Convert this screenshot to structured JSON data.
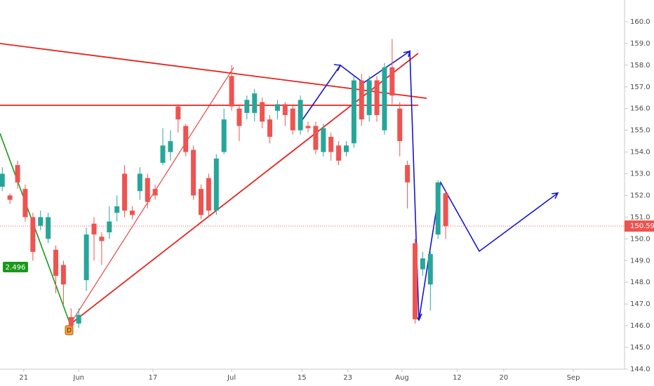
{
  "chart_data": {
    "type": "candlestick",
    "open": [
      152.4,
      152.0,
      153.4,
      152.3,
      151.0,
      150.6,
      150.0,
      149.5,
      148.8,
      146.4,
      146.1,
      148.1,
      150.7,
      150.1,
      150.3,
      151.2,
      153.0,
      151.3,
      152.2,
      152.8,
      152.3,
      153.5,
      154.0,
      156.1,
      155.2,
      154.1,
      152.3,
      152.8,
      151.3,
      154.0,
      157.5,
      156.0,
      155.8,
      155.8,
      156.3,
      155.5,
      155.9,
      156.2,
      156.0,
      155.0,
      155.2,
      155.2,
      154.0,
      154.7,
      154.3,
      154.0,
      154.4,
      157.3,
      155.7,
      157.3,
      155.0,
      157.9,
      156.0,
      153.4,
      149.8,
      148.6,
      147.9,
      150.2,
      152.1
    ],
    "high": [
      153.3,
      152.1,
      153.6,
      152.5,
      151.2,
      151.3,
      151.2,
      149.7,
      149.0,
      146.8,
      146.8,
      150.5,
      151.0,
      150.3,
      151.5,
      152.0,
      153.4,
      151.5,
      153.3,
      153.0,
      152.5,
      155.1,
      155.0,
      156.2,
      155.3,
      154.3,
      152.5,
      153.0,
      153.9,
      156.0,
      158.0,
      156.2,
      156.6,
      156.9,
      156.5,
      155.7,
      156.4,
      156.3,
      156.2,
      156.6,
      155.4,
      155.4,
      155.3,
      154.9,
      154.5,
      154.5,
      157.5,
      157.6,
      157.5,
      157.5,
      158.1,
      159.2,
      156.3,
      153.6,
      150.0,
      149.4,
      149.5,
      152.7,
      152.2
    ],
    "low": [
      152.2,
      151.6,
      152.3,
      150.8,
      149.0,
      150.4,
      149.8,
      147.5,
      147.0,
      145.8,
      145.9,
      147.6,
      149.0,
      148.8,
      150.0,
      150.8,
      151.0,
      150.9,
      151.8,
      151.4,
      151.8,
      153.4,
      153.6,
      154.9,
      153.8,
      151.8,
      150.9,
      151.0,
      151.1,
      153.9,
      155.9,
      154.5,
      155.5,
      155.4,
      155.1,
      154.4,
      155.5,
      155.2,
      154.8,
      154.8,
      154.9,
      153.9,
      153.8,
      153.6,
      153.4,
      153.8,
      154.2,
      155.2,
      155.4,
      155.4,
      154.8,
      156.2,
      153.8,
      151.4,
      146.1,
      148.3,
      146.7,
      150.0,
      150.0
    ],
    "close": [
      153.0,
      151.8,
      152.6,
      151.0,
      149.4,
      151.0,
      151.0,
      148.3,
      147.9,
      146.0,
      146.5,
      150.2,
      150.2,
      149.9,
      150.8,
      151.5,
      151.3,
      151.1,
      153.0,
      151.7,
      152.0,
      154.3,
      154.5,
      155.5,
      154.0,
      152.0,
      151.1,
      151.3,
      153.7,
      155.5,
      156.1,
      155.2,
      156.4,
      156.7,
      155.4,
      154.7,
      156.2,
      155.7,
      155.0,
      156.4,
      155.1,
      154.1,
      155.1,
      154.0,
      153.6,
      154.3,
      157.3,
      155.5,
      157.3,
      155.7,
      157.9,
      156.6,
      154.5,
      152.6,
      146.3,
      149.1,
      149.3,
      152.6,
      150.59
    ],
    "up_color": "#26a69a",
    "down_color": "#ef5350",
    "last_price": 150.59,
    "xlim": [
      -0.3,
      81.4
    ],
    "xticks": [
      {
        "value": 2.8,
        "label": "21"
      },
      {
        "value": 10,
        "label": "Jun"
      },
      {
        "value": 19.7,
        "label": "17"
      },
      {
        "value": 30,
        "label": "Jul"
      },
      {
        "value": 39.2,
        "label": "15"
      },
      {
        "value": 45.2,
        "label": "23"
      },
      {
        "value": 52.3,
        "label": "Aug"
      },
      {
        "value": 59.5,
        "label": "12"
      },
      {
        "value": 65.6,
        "label": "20"
      },
      {
        "value": 74.7,
        "label": "Sep"
      }
    ],
    "ylim": [
      144,
      161
    ],
    "yticks": [
      {
        "value": 144,
        "label": "144.0"
      },
      {
        "value": 145,
        "label": "145.0"
      },
      {
        "value": 146,
        "label": "146.0"
      },
      {
        "value": 147,
        "label": "147.0"
      },
      {
        "value": 148,
        "label": "148.0"
      },
      {
        "value": 149,
        "label": "149.0"
      },
      {
        "value": 150,
        "label": "150.0"
      },
      {
        "value": 151,
        "label": "151.0"
      },
      {
        "value": 152,
        "label": "152.0"
      },
      {
        "value": 153,
        "label": "153.0"
      },
      {
        "value": 154,
        "label": "154.0"
      },
      {
        "value": 155,
        "label": "155.0"
      },
      {
        "value": 156,
        "label": "156.0"
      },
      {
        "value": 157,
        "label": "157.0"
      },
      {
        "value": 158,
        "label": "158.0"
      },
      {
        "value": 159,
        "label": "159.0"
      },
      {
        "value": 160,
        "label": "160.0"
      }
    ],
    "annotations": [
      "2.496",
      "D"
    ]
  }
}
